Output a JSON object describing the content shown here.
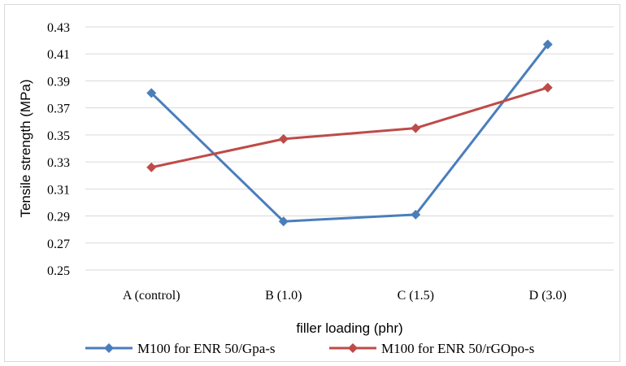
{
  "chart_data": {
    "type": "line",
    "categories": [
      "A (control)",
      "B (1.0)",
      "C (1.5)",
      "D (3.0)"
    ],
    "series": [
      {
        "name": "M100 for ENR 50/Gpa-s",
        "values": [
          0.381,
          0.286,
          0.291,
          0.417
        ],
        "color": "#4a7ebb",
        "marker": "diamond"
      },
      {
        "name": "M100 for ENR 50/rGOpo-s",
        "values": [
          0.326,
          0.347,
          0.355,
          0.385
        ],
        "color": "#be4b48",
        "marker": "diamond"
      }
    ],
    "title": "",
    "xlabel": "filler loading (phr)",
    "ylabel": "Tensile strength (MPa)",
    "ylim": [
      0.25,
      0.43
    ],
    "yticks": [
      0.25,
      0.27,
      0.29,
      0.31,
      0.33,
      0.35,
      0.37,
      0.39,
      0.41,
      0.43
    ],
    "ytick_labels": [
      "0.25",
      "0.27",
      "0.29",
      "0.31",
      "0.33",
      "0.35",
      "0.37",
      "0.39",
      "0.41",
      "0.43"
    ],
    "grid": true,
    "legend_position": "bottom"
  }
}
